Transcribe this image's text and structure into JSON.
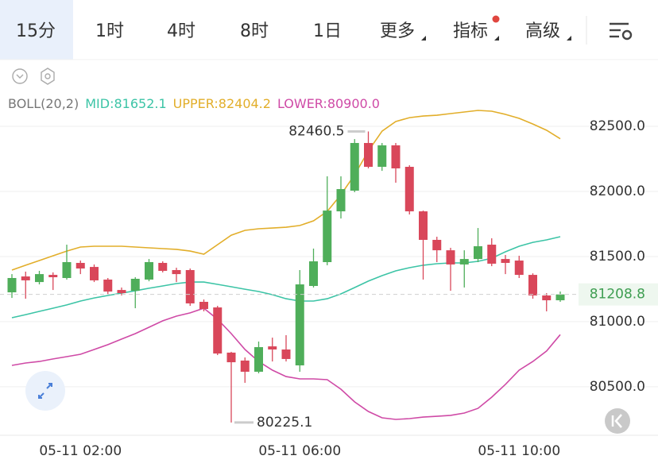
{
  "tabs": [
    "15分",
    "1时",
    "4时",
    "8时",
    "1日",
    "更多",
    "指标",
    "高级"
  ],
  "active_tab": 0,
  "chart_data": {
    "type": "candlestick",
    "indicator": "BOLL(20,2)",
    "categories": [
      null,
      null,
      null,
      null,
      null,
      "05-11 02:00",
      null,
      null,
      null,
      null,
      null,
      null,
      null,
      null,
      null,
      null,
      null,
      null,
      null,
      null,
      null,
      "05-11 06:00",
      null,
      null,
      null,
      null,
      null,
      null,
      null,
      null,
      null,
      null,
      null,
      null,
      null,
      null,
      null,
      "05-11 10:00",
      null,
      null,
      null
    ],
    "open": [
      81225,
      81347,
      81304,
      81359,
      81335,
      81451,
      81420,
      81323,
      81243,
      81237,
      81323,
      81451,
      81396,
      81396,
      81152,
      81109,
      80762,
      80701,
      80615,
      80810,
      80786,
      80664,
      81274,
      81457,
      81847,
      82006,
      82372,
      82189,
      82354,
      82189,
      81847,
      81628,
      81548,
      81439,
      81481,
      81591,
      81481,
      81469,
      81359,
      81201,
      81164
    ],
    "high": [
      81365,
      81384,
      81390,
      81378,
      81591,
      81469,
      81439,
      81335,
      81262,
      81341,
      81481,
      81463,
      81414,
      81408,
      81170,
      81121,
      80768,
      80725,
      80847,
      80877,
      80896,
      81396,
      81561,
      82116,
      82116,
      82402,
      82460.5,
      82372,
      82372,
      82201,
      81853,
      81652,
      81567,
      81548,
      81719,
      81640,
      81512,
      81506,
      81371,
      81219,
      81231
    ],
    "low": [
      81182,
      81176,
      81286,
      81243,
      81323,
      81365,
      81304,
      81213,
      81201,
      81103,
      81310,
      81378,
      81304,
      81121,
      81079,
      80743,
      80225.1,
      80530,
      80603,
      80694,
      80694,
      80615,
      81262,
      81433,
      81792,
      81994,
      82177,
      82158,
      82067,
      81823,
      81323,
      81457,
      81237,
      81262,
      81457,
      81426,
      81365,
      81335,
      81176,
      81079,
      81152
    ],
    "close": [
      81335,
      81317,
      81365,
      81341,
      81457,
      81408,
      81317,
      81231,
      81219,
      81329,
      81457,
      81390,
      81365,
      81140,
      81097,
      80755,
      80688,
      80615,
      80804,
      80786,
      80713,
      81286,
      81463,
      81853,
      82018,
      82372,
      82189,
      82354,
      82177,
      81847,
      81628,
      81548,
      81439,
      81481,
      81579,
      81445,
      81451,
      81359,
      81201,
      81164,
      81208.8
    ],
    "up_color": "#4fae5a",
    "down_color": "#d9475a",
    "series": [
      {
        "name": "MID:81652.1",
        "color": "#3cc4a6",
        "values": [
          81030,
          81054,
          81079,
          81103,
          81128,
          81158,
          81182,
          81201,
          81219,
          81237,
          81256,
          81274,
          81292,
          81304,
          81304,
          81286,
          81268,
          81249,
          81231,
          81207,
          81176,
          81158,
          81158,
          81176,
          81213,
          81262,
          81311,
          81353,
          81390,
          81414,
          81433,
          81445,
          81451,
          81451,
          81463,
          81487,
          81536,
          81579,
          81609,
          81628,
          81652.1
        ]
      },
      {
        "name": "UPPER:82404.2",
        "color": "#e2ae2a",
        "values": [
          81396,
          81433,
          81469,
          81506,
          81542,
          81573,
          81579,
          81579,
          81579,
          81573,
          81567,
          81561,
          81555,
          81542,
          81518,
          81591,
          81664,
          81701,
          81713,
          81719,
          81725,
          81738,
          81774,
          81847,
          81975,
          82128,
          82311,
          82463,
          82537,
          82567,
          82579,
          82585,
          82598,
          82610,
          82622,
          82616,
          82592,
          82561,
          82518,
          82470,
          82404.2
        ]
      },
      {
        "name": "LOWER:80900.0",
        "color": "#cf4aa6",
        "values": [
          80664,
          80682,
          80694,
          80713,
          80731,
          80749,
          80786,
          80823,
          80866,
          80908,
          80957,
          81006,
          81042,
          81067,
          81103,
          81018,
          80908,
          80786,
          80694,
          80627,
          80578,
          80560,
          80560,
          80554,
          80481,
          80383,
          80310,
          80261,
          80249,
          80255,
          80267,
          80273,
          80280,
          80298,
          80334,
          80420,
          80518,
          80627,
          80694,
          80774,
          80900
        ]
      }
    ],
    "ylim": [
      80127,
      82970
    ],
    "yticks": [
      {
        "value": 80500,
        "label": "80500.0"
      },
      {
        "value": 81000,
        "label": "81000.0"
      },
      {
        "value": 81500,
        "label": "81500.0"
      },
      {
        "value": 82000,
        "label": "82000.0"
      },
      {
        "value": 82500,
        "label": "82500.0"
      }
    ],
    "grid": true
  }
}
